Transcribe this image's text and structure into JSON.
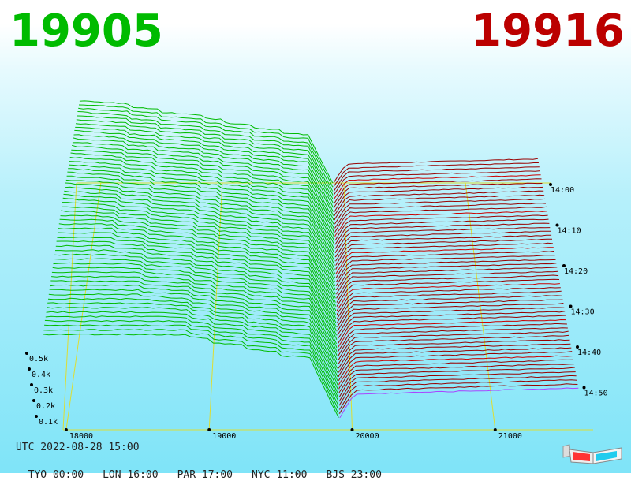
{
  "header": {
    "bid_price": "19905",
    "ask_price": "19916"
  },
  "footer": {
    "utc": "UTC 2022-08-28 15:00",
    "zones": [
      "TYO 00:00",
      "LON 16:00",
      "PAR 17:00",
      "NYC 11:00",
      "BJS 23:00"
    ]
  },
  "colors": {
    "bid": "#00bb00",
    "ask": "#990000",
    "ask_highlight": "#cc0000",
    "frame": "#dddd33",
    "latest_line": "#aa44ff"
  },
  "icons": [
    "anaglyph-3d-glasses-icon"
  ],
  "chart_data": {
    "type": "3d-depth-ribbon",
    "x_axis": {
      "ticks": [
        18000,
        19000,
        20000,
        21000
      ],
      "labels": [
        "18000",
        "19000",
        "20000",
        "21000"
      ]
    },
    "z_axis": {
      "ticks": [
        "0.5k",
        "0.4k",
        "0.3k",
        "0.2k",
        "0.1k"
      ],
      "values": [
        500,
        400,
        300,
        200,
        100
      ]
    },
    "time_axis": {
      "ticks": [
        "14:00",
        "14:10",
        "14:20",
        "14:30",
        "14:40",
        "14:50"
      ]
    },
    "bid_price": 19905,
    "ask_price": 19916,
    "snapshots": 58
  }
}
